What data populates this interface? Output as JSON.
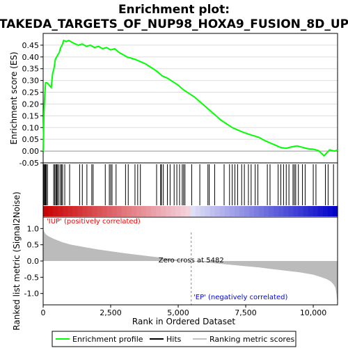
{
  "chart_data": {
    "type": "line",
    "title_line1": "Enrichment plot:",
    "title_line2": "TAKEDA_TARGETS_OF_NUP98_HOXA9_FUSION_8D_UP",
    "es_ylabel": "Enrichment score (ES)",
    "metric_ylabel": "Ranked list metric (Signal2Noise)",
    "xlabel": "Rank in Ordered Dataset",
    "x_range": [
      0,
      10900
    ],
    "es_ylim": [
      -0.05,
      0.5
    ],
    "es_yticks": [
      -0.05,
      0.0,
      0.05,
      0.1,
      0.15,
      0.2,
      0.25,
      0.3,
      0.35,
      0.4,
      0.45
    ],
    "es_ytick_labels": [
      "-0.05",
      "0.00",
      "0.05",
      "0.10",
      "0.15",
      "0.20",
      "0.25",
      "0.30",
      "0.35",
      "0.40",
      "0.45"
    ],
    "metric_ylim": [
      -1.35,
      1.35
    ],
    "metric_yticks": [
      -1.0,
      -0.5,
      0.0,
      0.5,
      1.0
    ],
    "metric_ytick_labels": [
      "-1.0",
      "-0.5",
      "0.0",
      "0.5",
      "1.0"
    ],
    "xticks": [
      0,
      2500,
      5000,
      7500,
      10000
    ],
    "xtick_labels": [
      "0",
      "2,500",
      "5,000",
      "7,500",
      "10,000"
    ],
    "enrichment_profile": {
      "x": [
        0,
        30,
        60,
        90,
        150,
        300,
        350,
        400,
        450,
        500,
        550,
        600,
        650,
        700,
        760,
        850,
        950,
        1100,
        1300,
        1450,
        1600,
        1750,
        1900,
        2050,
        2200,
        2350,
        2500,
        2650,
        2800,
        2950,
        3100,
        3250,
        3400,
        3600,
        3800,
        4000,
        4200,
        4400,
        4600,
        4800,
        5000,
        5200,
        5400,
        5600,
        5800,
        6000,
        6200,
        6400,
        6600,
        6800,
        7000,
        7200,
        7400,
        7600,
        7800,
        8000,
        8200,
        8400,
        8600,
        8800,
        9000,
        9200,
        9400,
        9600,
        9800,
        10000,
        10200,
        10400,
        10600,
        10800,
        10900
      ],
      "es": [
        0.0,
        0.17,
        0.24,
        0.29,
        0.29,
        0.27,
        0.33,
        0.35,
        0.39,
        0.4,
        0.41,
        0.42,
        0.44,
        0.45,
        0.47,
        0.465,
        0.47,
        0.46,
        0.45,
        0.455,
        0.445,
        0.45,
        0.44,
        0.445,
        0.435,
        0.44,
        0.43,
        0.435,
        0.42,
        0.41,
        0.4,
        0.395,
        0.39,
        0.38,
        0.37,
        0.355,
        0.34,
        0.32,
        0.31,
        0.295,
        0.28,
        0.26,
        0.245,
        0.23,
        0.21,
        0.19,
        0.17,
        0.15,
        0.13,
        0.115,
        0.1,
        0.09,
        0.08,
        0.072,
        0.065,
        0.058,
        0.045,
        0.035,
        0.025,
        0.015,
        0.012,
        0.018,
        0.022,
        0.016,
        0.01,
        0.008,
        0.002,
        -0.02,
        0.005,
        0.0,
        0.005
      ]
    },
    "hits": [
      10,
      35,
      60,
      90,
      120,
      160,
      390,
      430,
      470,
      500,
      530,
      580,
      640,
      680,
      720,
      800,
      980,
      1350,
      1450,
      1620,
      1800,
      1850,
      2300,
      2450,
      2500,
      2550,
      2700,
      3050,
      3150,
      3400,
      3500,
      3600,
      4200,
      4350,
      4380,
      4450,
      4600,
      4700,
      4850,
      4950,
      5050,
      5150,
      5200,
      5250,
      5500,
      5800,
      6100,
      6150,
      6350,
      6700,
      6900,
      7000,
      7100,
      7200,
      7350,
      7450,
      7600,
      7700,
      7850,
      7950,
      8300,
      8400,
      8700,
      8800,
      8900,
      9000,
      9100,
      9250,
      9300,
      9350,
      9450,
      9600,
      9700,
      10000,
      10100,
      10450,
      10550,
      10750
    ],
    "metric_profile": {
      "x": [
        0,
        50,
        100,
        200,
        400,
        700,
        1000,
        1500,
        2000,
        2500,
        3000,
        3500,
        4000,
        4500,
        5000,
        5482,
        6000,
        6500,
        7000,
        7500,
        8000,
        8500,
        9000,
        9500,
        10000,
        10300,
        10500,
        10650,
        10750,
        10820,
        10860,
        10900
      ],
      "values": [
        1.0,
        0.88,
        0.82,
        0.76,
        0.68,
        0.58,
        0.51,
        0.43,
        0.36,
        0.3,
        0.24,
        0.19,
        0.14,
        0.09,
        0.04,
        0.0,
        -0.04,
        -0.08,
        -0.12,
        -0.16,
        -0.2,
        -0.25,
        -0.3,
        -0.35,
        -0.42,
        -0.5,
        -0.56,
        -0.63,
        -0.72,
        -0.82,
        -1.0,
        -1.32
      ]
    },
    "zero_cross_rank": 5482,
    "zero_cross_label": "Zero cross at 5482",
    "pos_label": "'IUP' (positively correlated)",
    "neg_label": "'EP' (negatively correlated)",
    "legend": [
      {
        "name": "Enrichment profile",
        "color": "#00ff00"
      },
      {
        "name": "Hits",
        "color": "#000000"
      },
      {
        "name": "Ranking metric scores",
        "color": "#c0c0c0"
      }
    ],
    "colors": {
      "profile": "#00ff00",
      "hits": "#000000",
      "metric": "#bbbbbb",
      "pos_text": "#ff0000",
      "neg_text": "#0000ff",
      "zero_line": "#888888"
    }
  }
}
